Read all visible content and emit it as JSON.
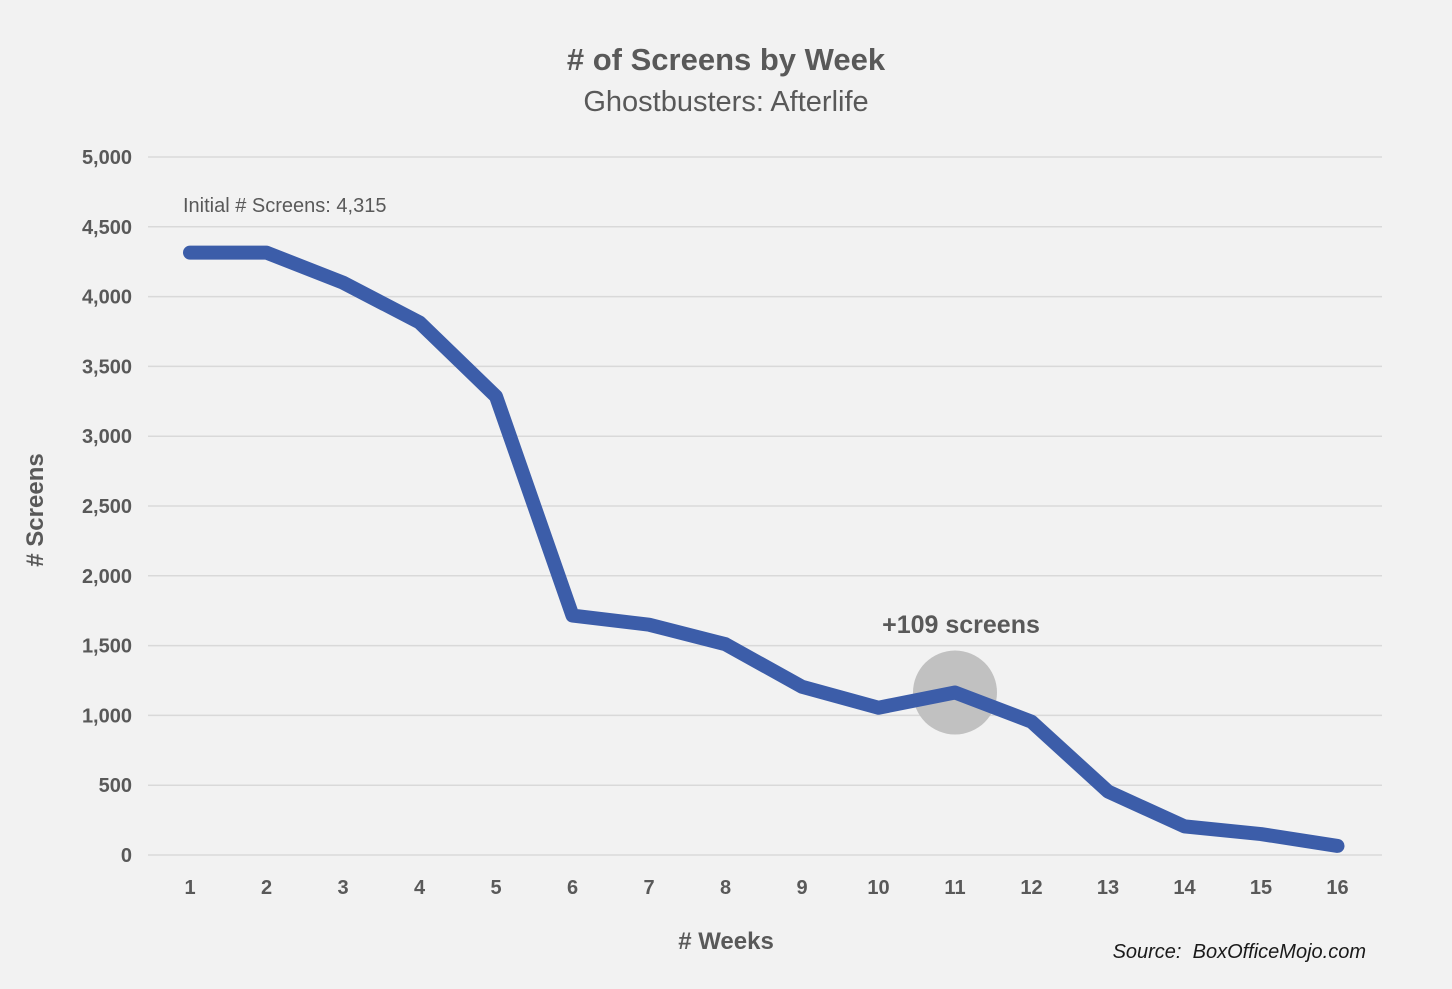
{
  "header": {
    "title": "# of Screens by Week",
    "subtitle": "Ghostbusters: Afterlife"
  },
  "annotations": {
    "initial_screens_note": "Initial # Screens: 4,315",
    "highlight_note": "+109 screens"
  },
  "axes": {
    "x_title": "# Weeks",
    "y_title": "# Screens"
  },
  "source": {
    "text": "Source:  BoxOfficeMojo.com"
  },
  "colors": {
    "background": "#f2f2f2",
    "line": "#3c5da9",
    "grid": "#d9d9d9",
    "text": "#595959",
    "highlight_circle": "#c1c1c1",
    "source_text": "#1a1a1a"
  },
  "chart_data": {
    "type": "line",
    "title": "# of Screens by Week",
    "subtitle": "Ghostbusters: Afterlife",
    "xlabel": "# Weeks",
    "ylabel": "# Screens",
    "categories": [
      "1",
      "2",
      "3",
      "4",
      "5",
      "6",
      "7",
      "8",
      "9",
      "10",
      "11",
      "12",
      "13",
      "14",
      "15",
      "16"
    ],
    "values": [
      4315,
      4315,
      4100,
      3815,
      3285,
      1715,
      1650,
      1510,
      1205,
      1055,
      1164,
      955,
      455,
      205,
      150,
      65
    ],
    "initial_screens": 4315,
    "ylim": [
      0,
      5000
    ],
    "ytick_step": 500,
    "ytick_labels": [
      "0",
      "500",
      "1,000",
      "1,500",
      "2,000",
      "2,500",
      "3,000",
      "3,500",
      "4,000",
      "4,500",
      "5,000"
    ],
    "grid": "horizontal-only",
    "legend": "none",
    "highlight": {
      "week": "11",
      "value": 1164,
      "note": "+109 screens",
      "radius": 42
    }
  }
}
